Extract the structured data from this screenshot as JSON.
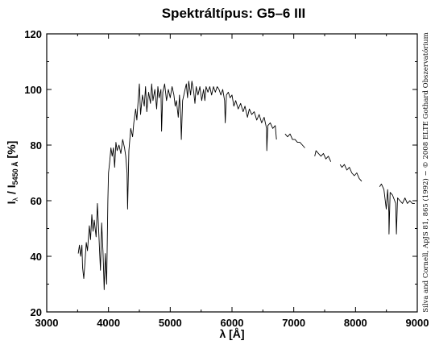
{
  "chart_data": {
    "type": "line",
    "title": "Spektráltípus: G5–6 III",
    "xlabel": "λ [Å]",
    "ylabel": {
      "main": "I",
      "sub1": "λ",
      "mid": " / I",
      "sub2": "5450 Å",
      "unit": " [%]"
    },
    "credit": "Silva and Cornell, ApJS 81, 865 (1992) − © 2008 ELTE Gothard Obszervatórium",
    "xlim": [
      3000,
      9000
    ],
    "ylim": [
      20,
      120
    ],
    "xticks": [
      3000,
      4000,
      5000,
      6000,
      7000,
      8000,
      9000
    ],
    "xtick_labels": [
      "3000",
      "4000",
      "5000",
      "6000",
      "7000",
      "8000",
      "9000"
    ],
    "yticks": [
      20,
      40,
      60,
      80,
      100,
      120
    ],
    "ytick_labels": [
      "20",
      "40",
      "60",
      "80",
      "100",
      "120"
    ],
    "grid": false,
    "series": [
      {
        "segments": [
          [
            [
              3510,
              41
            ],
            [
              3530,
              44
            ],
            [
              3550,
              40
            ],
            [
              3570,
              44
            ],
            [
              3580,
              36
            ],
            [
              3600,
              32
            ],
            [
              3620,
              38
            ],
            [
              3640,
              45
            ],
            [
              3660,
              42
            ],
            [
              3690,
              51
            ],
            [
              3710,
              46
            ],
            [
              3730,
              55
            ],
            [
              3750,
              49
            ],
            [
              3770,
              53
            ],
            [
              3800,
              47
            ],
            [
              3820,
              59
            ],
            [
              3840,
              50
            ],
            [
              3860,
              40
            ],
            [
              3870,
              35
            ],
            [
              3890,
              52
            ],
            [
              3910,
              42
            ],
            [
              3920,
              36
            ],
            [
              3930,
              28
            ],
            [
              3950,
              41
            ],
            [
              3960,
              35
            ],
            [
              3970,
              30
            ],
            [
              3990,
              60
            ],
            [
              4000,
              70
            ],
            [
              4020,
              74
            ],
            [
              4040,
              79
            ],
            [
              4060,
              76
            ],
            [
              4080,
              79
            ],
            [
              4100,
              72
            ],
            [
              4120,
              81
            ],
            [
              4140,
              78
            ],
            [
              4170,
              80
            ],
            [
              4200,
              77
            ],
            [
              4230,
              82
            ],
            [
              4260,
              79
            ],
            [
              4280,
              76
            ],
            [
              4300,
              70
            ],
            [
              4310,
              57
            ],
            [
              4330,
              78
            ],
            [
              4360,
              86
            ],
            [
              4390,
              83
            ],
            [
              4410,
              88
            ],
            [
              4440,
              93
            ],
            [
              4460,
              89
            ],
            [
              4480,
              96
            ],
            [
              4500,
              102
            ],
            [
              4520,
              91
            ],
            [
              4550,
              98
            ],
            [
              4580,
              94
            ],
            [
              4600,
              101
            ],
            [
              4620,
              92
            ],
            [
              4650,
              99
            ],
            [
              4680,
              95
            ],
            [
              4700,
              102
            ],
            [
              4720,
              96
            ],
            [
              4750,
              100
            ],
            [
              4780,
              93
            ],
            [
              4800,
              101
            ],
            [
              4820,
              97
            ],
            [
              4850,
              100
            ],
            [
              4860,
              85
            ],
            [
              4880,
              99
            ],
            [
              4910,
              102
            ],
            [
              4940,
              96
            ],
            [
              4970,
              100
            ],
            [
              5000,
              97
            ],
            [
              5030,
              101
            ],
            [
              5060,
              98
            ],
            [
              5080,
              94
            ],
            [
              5100,
              96
            ],
            [
              5130,
              90
            ],
            [
              5150,
              98
            ],
            [
              5170,
              90
            ],
            [
              5180,
              82
            ],
            [
              5200,
              96
            ],
            [
              5230,
              99
            ],
            [
              5260,
              102
            ],
            [
              5280,
              97
            ],
            [
              5300,
              103
            ],
            [
              5330,
              98
            ],
            [
              5350,
              103
            ],
            [
              5380,
              99
            ],
            [
              5400,
              95
            ],
            [
              5420,
              101
            ],
            [
              5450,
              98
            ],
            [
              5480,
              101
            ],
            [
              5510,
              96
            ],
            [
              5540,
              100
            ],
            [
              5560,
              96
            ],
            [
              5580,
              101
            ],
            [
              5610,
              99
            ],
            [
              5640,
              101
            ],
            [
              5670,
              98
            ],
            [
              5700,
              101
            ],
            [
              5730,
              99
            ],
            [
              5760,
              101
            ],
            [
              5790,
              100
            ],
            [
              5820,
              98
            ],
            [
              5850,
              100
            ],
            [
              5880,
              96
            ],
            [
              5890,
              88
            ],
            [
              5910,
              98
            ],
            [
              5940,
              99
            ],
            [
              5970,
              97
            ],
            [
              6000,
              98
            ],
            [
              6030,
              94
            ],
            [
              6060,
              96
            ],
            [
              6100,
              93
            ],
            [
              6140,
              95
            ],
            [
              6180,
              92
            ],
            [
              6210,
              94
            ],
            [
              6250,
              90
            ],
            [
              6280,
              93
            ],
            [
              6320,
              91
            ],
            [
              6360,
              92
            ],
            [
              6400,
              89
            ],
            [
              6440,
              91
            ],
            [
              6480,
              88
            ],
            [
              6520,
              90
            ],
            [
              6560,
              86
            ],
            [
              6563,
              78
            ],
            [
              6580,
              87
            ],
            [
              6620,
              88
            ],
            [
              6660,
              86
            ],
            [
              6700,
              87
            ],
            [
              6720,
              82
            ]
          ],
          [
            [
              6860,
              84
            ],
            [
              6900,
              83
            ],
            [
              6940,
              84
            ],
            [
              6980,
              82
            ],
            [
              7020,
              82
            ],
            [
              7060,
              81
            ],
            [
              7100,
              81
            ],
            [
              7140,
              80
            ],
            [
              7180,
              79
            ]
          ],
          [
            [
              7340,
              76
            ],
            [
              7360,
              78
            ],
            [
              7400,
              77
            ],
            [
              7440,
              76
            ],
            [
              7480,
              77
            ],
            [
              7520,
              75
            ],
            [
              7560,
              76
            ],
            [
              7600,
              74
            ]
          ],
          [
            [
              7750,
              73
            ],
            [
              7780,
              72
            ],
            [
              7820,
              73
            ],
            [
              7860,
              71
            ],
            [
              7900,
              72
            ],
            [
              7940,
              70
            ],
            [
              7980,
              69
            ],
            [
              8020,
              70
            ],
            [
              8060,
              68
            ],
            [
              8100,
              67
            ]
          ],
          [
            [
              8390,
              65
            ],
            [
              8420,
              66
            ],
            [
              8460,
              64
            ],
            [
              8498,
              57
            ],
            [
              8520,
              64
            ],
            [
              8540,
              56
            ],
            [
              8542,
              48
            ],
            [
              8560,
              63
            ],
            [
              8600,
              62
            ],
            [
              8650,
              59
            ],
            [
              8662,
              48
            ],
            [
              8680,
              61
            ],
            [
              8720,
              60
            ],
            [
              8760,
              59
            ],
            [
              8800,
              61
            ],
            [
              8840,
              59
            ],
            [
              8880,
              60
            ],
            [
              8920,
              59
            ],
            [
              8960,
              59
            ]
          ]
        ]
      }
    ]
  }
}
